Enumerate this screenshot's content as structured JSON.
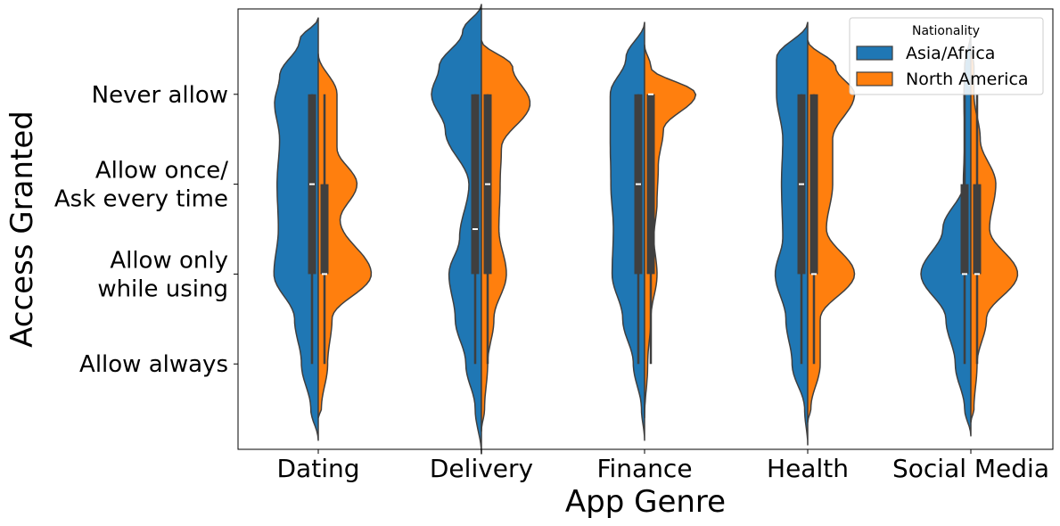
{
  "chart_data": {
    "type": "violin",
    "split": true,
    "xlabel": "App Genre",
    "ylabel": "Access Granted",
    "categories": [
      "Dating",
      "Delivery",
      "Finance",
      "Health",
      "Social Media"
    ],
    "y_levels": [
      {
        "value": 1,
        "lines": [
          "Never allow"
        ]
      },
      {
        "value": 2,
        "lines": [
          "Allow once/",
          "Ask every time"
        ]
      },
      {
        "value": 3,
        "lines": [
          "Allow only",
          "while using"
        ]
      },
      {
        "value": 4,
        "lines": [
          "Allow always"
        ]
      }
    ],
    "y_axis": "inverted",
    "ylim": [
      0.05,
      4.95
    ],
    "legend": {
      "title": "Nationality",
      "position": "top-right",
      "entries": [
        {
          "label": "Asia/Africa",
          "color": "#1f77b4"
        },
        {
          "label": "North America",
          "color": "#ff7f0e"
        }
      ]
    },
    "series": [
      {
        "name": "Asia/Africa",
        "color": "#1f77b4",
        "violins": [
          {
            "density": [
              [
                0.15,
                0.0
              ],
              [
                0.4,
                0.3
              ],
              [
                0.8,
                0.62
              ],
              [
                1.1,
                0.7
              ],
              [
                1.5,
                0.62
              ],
              [
                2.0,
                0.66
              ],
              [
                2.5,
                0.64
              ],
              [
                3.0,
                0.71
              ],
              [
                3.5,
                0.38
              ],
              [
                4.0,
                0.27
              ],
              [
                4.5,
                0.12
              ],
              [
                4.85,
                0.0
              ]
            ],
            "q1": 1.0,
            "median": 2.0,
            "q3": 3.0,
            "whisker": [
              1.0,
              4.0
            ]
          },
          {
            "density": [
              [
                0.0,
                0.0
              ],
              [
                0.3,
                0.3
              ],
              [
                0.7,
                0.68
              ],
              [
                1.0,
                0.8
              ],
              [
                1.4,
                0.58
              ],
              [
                2.0,
                0.2
              ],
              [
                2.6,
                0.35
              ],
              [
                3.0,
                0.52
              ],
              [
                3.5,
                0.42
              ],
              [
                4.0,
                0.25
              ],
              [
                4.5,
                0.1
              ],
              [
                5.0,
                0.0
              ]
            ],
            "q1": 1.0,
            "median": 2.5,
            "q3": 3.0,
            "whisker": [
              1.0,
              4.0
            ]
          },
          {
            "density": [
              [
                0.2,
                0.0
              ],
              [
                0.6,
                0.3
              ],
              [
                1.0,
                0.55
              ],
              [
                1.5,
                0.55
              ],
              [
                2.0,
                0.54
              ],
              [
                2.5,
                0.5
              ],
              [
                3.0,
                0.52
              ],
              [
                3.5,
                0.35
              ],
              [
                4.0,
                0.18
              ],
              [
                4.5,
                0.05
              ],
              [
                4.85,
                0.0
              ]
            ],
            "q1": 1.0,
            "median": 2.0,
            "q3": 3.0,
            "whisker": [
              1.0,
              4.0
            ]
          },
          {
            "density": [
              [
                0.2,
                0.0
              ],
              [
                0.6,
                0.5
              ],
              [
                1.0,
                0.5
              ],
              [
                1.5,
                0.4
              ],
              [
                2.0,
                0.42
              ],
              [
                2.6,
                0.4
              ],
              [
                3.0,
                0.52
              ],
              [
                3.5,
                0.35
              ],
              [
                4.0,
                0.25
              ],
              [
                4.5,
                0.05
              ],
              [
                4.9,
                0.0
              ]
            ],
            "q1": 1.0,
            "median": 2.0,
            "q3": 3.0,
            "whisker": [
              1.0,
              4.0
            ]
          },
          {
            "density": [
              [
                0.3,
                0.0
              ],
              [
                0.7,
                0.1
              ],
              [
                1.0,
                0.11
              ],
              [
                1.5,
                0.1
              ],
              [
                2.0,
                0.12
              ],
              [
                2.5,
                0.45
              ],
              [
                3.0,
                0.8
              ],
              [
                3.5,
                0.4
              ],
              [
                4.0,
                0.25
              ],
              [
                4.5,
                0.1
              ],
              [
                4.8,
                0.0
              ]
            ],
            "q1": 2.0,
            "median": 3.0,
            "q3": 3.0,
            "whisker": [
              1.0,
              4.0
            ]
          }
        ]
      },
      {
        "name": "North America",
        "color": "#ff7f0e",
        "violins": [
          {
            "density": [
              [
                0.55,
                0.0
              ],
              [
                1.0,
                0.3
              ],
              [
                1.6,
                0.3
              ],
              [
                2.0,
                0.62
              ],
              [
                2.4,
                0.35
              ],
              [
                3.0,
                0.85
              ],
              [
                3.5,
                0.22
              ],
              [
                4.0,
                0.15
              ],
              [
                4.5,
                0.05
              ],
              [
                4.6,
                0.0
              ]
            ],
            "q1": 2.0,
            "median": 3.0,
            "q3": 3.0,
            "whisker": [
              1.0,
              4.0
            ]
          },
          {
            "density": [
              [
                0.4,
                0.0
              ],
              [
                0.7,
                0.5
              ],
              [
                1.1,
                0.78
              ],
              [
                1.6,
                0.32
              ],
              [
                2.0,
                0.3
              ],
              [
                2.5,
                0.28
              ],
              [
                3.0,
                0.4
              ],
              [
                3.5,
                0.2
              ],
              [
                4.0,
                0.1
              ],
              [
                4.5,
                0.05
              ],
              [
                4.75,
                0.0
              ]
            ],
            "q1": 1.0,
            "median": 2.0,
            "q3": 3.0,
            "whisker": [
              1.0,
              4.0
            ]
          },
          {
            "density": [
              [
                0.45,
                0.0
              ],
              [
                0.7,
                0.1
              ],
              [
                1.0,
                0.82
              ],
              [
                1.4,
                0.3
              ],
              [
                1.8,
                0.22
              ],
              [
                2.2,
                0.2
              ],
              [
                2.6,
                0.15
              ],
              [
                3.0,
                0.2
              ],
              [
                3.5,
                0.1
              ],
              [
                4.0,
                0.05
              ],
              [
                4.6,
                0.0
              ]
            ],
            "q1": 1.0,
            "median": 1.0,
            "q3": 3.0,
            "whisker": [
              1.0,
              4.0
            ]
          },
          {
            "density": [
              [
                0.4,
                0.0
              ],
              [
                0.7,
                0.45
              ],
              [
                1.0,
                0.75
              ],
              [
                1.5,
                0.4
              ],
              [
                2.0,
                0.4
              ],
              [
                2.5,
                0.3
              ],
              [
                3.0,
                0.75
              ],
              [
                3.5,
                0.2
              ],
              [
                4.0,
                0.2
              ],
              [
                4.5,
                0.05
              ],
              [
                4.65,
                0.0
              ]
            ],
            "q1": 1.0,
            "median": 3.0,
            "q3": 3.0,
            "whisker": [
              1.0,
              4.0
            ]
          },
          {
            "density": [
              [
                0.45,
                0.0
              ],
              [
                0.7,
                0.05
              ],
              [
                1.0,
                0.05
              ],
              [
                1.5,
                0.15
              ],
              [
                2.0,
                0.4
              ],
              [
                2.5,
                0.3
              ],
              [
                3.0,
                0.75
              ],
              [
                3.5,
                0.25
              ],
              [
                4.0,
                0.1
              ],
              [
                4.5,
                0.05
              ],
              [
                4.65,
                0.0
              ]
            ],
            "q1": 2.0,
            "median": 3.0,
            "q3": 3.0,
            "whisker": [
              1.0,
              4.0
            ]
          }
        ]
      }
    ]
  }
}
